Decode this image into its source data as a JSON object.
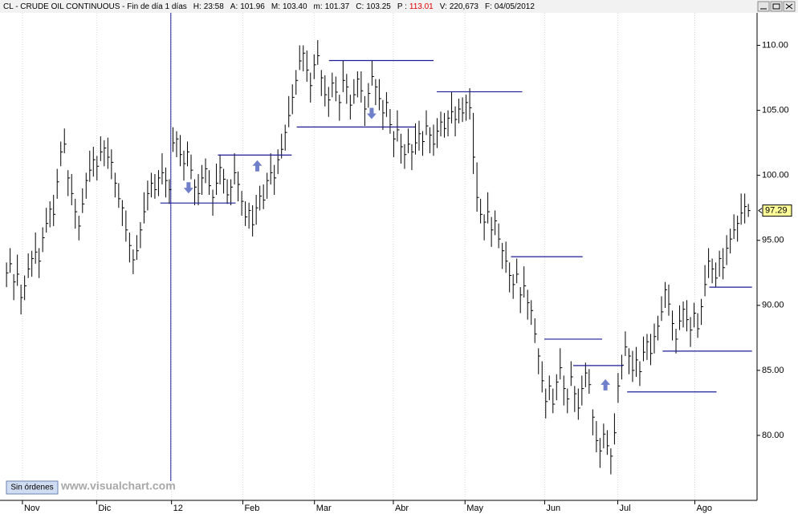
{
  "header": {
    "symbol": "CL - CRUDE OIL CONTINUOUS - Fin de día 1 días",
    "fields": [
      {
        "label": "H:",
        "value": "23:58"
      },
      {
        "label": "A:",
        "value": "101.96"
      },
      {
        "label": "M:",
        "value": "103.40"
      },
      {
        "label": "m:",
        "value": "101.37"
      },
      {
        "label": "C:",
        "value": "103.25"
      },
      {
        "label": "P :",
        "value": "113.01",
        "color": "#e00000"
      },
      {
        "label": "V:",
        "value": "220,673"
      },
      {
        "label": "F:",
        "value": "04/05/2012"
      }
    ]
  },
  "footer": {
    "button": "Sin órdenes",
    "watermark": "www.visualchart.com"
  },
  "chart_data": {
    "type": "ohlc",
    "color": "#000000",
    "xlim": [
      -1.8,
      207.4
    ],
    "ylim": [
      75,
      112.5
    ],
    "xticks": [
      {
        "value": 4.4,
        "label": "Nov"
      },
      {
        "value": 24.9,
        "label": "Dic"
      },
      {
        "value": 45.6,
        "label": "12"
      },
      {
        "value": 65.3,
        "label": "Feb"
      },
      {
        "value": 85.1,
        "label": "Mar"
      },
      {
        "value": 106.9,
        "label": "Abr"
      },
      {
        "value": 126.7,
        "label": "May"
      },
      {
        "value": 148.7,
        "label": "Jun"
      },
      {
        "value": 168.9,
        "label": "Jul"
      },
      {
        "value": 190.2,
        "label": "Ago"
      }
    ],
    "yticks": [
      {
        "value": 80,
        "label": "80.00"
      },
      {
        "value": 85,
        "label": "85.00"
      },
      {
        "value": 90,
        "label": "90.00"
      },
      {
        "value": 95,
        "label": "95.00"
      },
      {
        "value": 100,
        "label": "100.00"
      },
      {
        "value": 105,
        "label": "105.00"
      },
      {
        "value": 110,
        "label": "110.00"
      }
    ],
    "grid": true,
    "vline": 45.4,
    "last": 97.29,
    "high": [
      93.3,
      94.4,
      92.4,
      93.9,
      91.6,
      92.3,
      94.0,
      94.2,
      95.6,
      94.4,
      96.0,
      97.5,
      98.0,
      98.5,
      100.5,
      102.6,
      103.6,
      100.4,
      100.1,
      98.2,
      96.9,
      99.0,
      100.2,
      101.9,
      102.2,
      101.5,
      103.0,
      102.7,
      102.9,
      102.0,
      100.2,
      99.4,
      98.1,
      97.3,
      95.6,
      94.3,
      95.4,
      96.4,
      98.7,
      99.6,
      100.2,
      100.1,
      100.4,
      101.7,
      100.6,
      99.7,
      103.7,
      103.4,
      103.1,
      101.9,
      102.6,
      101.6,
      99.7,
      100.1,
      100.8,
      101.3,
      100.4,
      98.9,
      100.9,
      101.6,
      100.5,
      99.7,
      99.7,
      101.7,
      100.3,
      98.8,
      98.0,
      97.9,
      97.7,
      98.5,
      99.2,
      99.3,
      100.2,
      101.7,
      100.8,
      102.0,
      103.2,
      103.9,
      106.1,
      107.0,
      108.1,
      110.0,
      110.0,
      109.6,
      107.9,
      109.3,
      110.4,
      108.1,
      107.7,
      106.8,
      107.9,
      107.6,
      106.2,
      108.8,
      107.8,
      106.2,
      107.4,
      108.0,
      108.0,
      106.1,
      107.1,
      108.8,
      107.4,
      107.4,
      105.8,
      106.4,
      105.1,
      103.4,
      105.0,
      103.2,
      102.4,
      103.6,
      102.4,
      104.0,
      104.2,
      103.4,
      105.0,
      103.7,
      103.9,
      104.4,
      104.9,
      104.8,
      105.0,
      106.4,
      105.3,
      105.9,
      106.0,
      106.2,
      106.7,
      104.8,
      101.0,
      98.2,
      97.0,
      98.7,
      96.8,
      97.3,
      96.3,
      94.8,
      94.9,
      93.3,
      92.4,
      93.6,
      91.4,
      93.0,
      91.2,
      90.4,
      89.0,
      86.7,
      85.7,
      83.6,
      84.6,
      83.6,
      84.7,
      86.7,
      84.6,
      83.6,
      85.7,
      83.8,
      83.6,
      84.6,
      85.6,
      85.1,
      82.0,
      81.1,
      79.8,
      80.9,
      80.4,
      79.0,
      81.7,
      84.8,
      86.2,
      88.0,
      86.7,
      86.5,
      86.8,
      85.7,
      87.6,
      87.8,
      87.8,
      88.6,
      89.2,
      90.7,
      91.8,
      91.6,
      89.6,
      88.2,
      90.0,
      90.3,
      90.4,
      89.1,
      90.2,
      89.4,
      90.5,
      93.1,
      94.4,
      93.6,
      93.3,
      94.2,
      94.4,
      95.4,
      95.9,
      97.0,
      96.9,
      98.6,
      98.6,
      97.8
    ],
    "low": [
      91.4,
      92.5,
      90.4,
      91.5,
      89.3,
      90.4,
      92.1,
      92.2,
      93.2,
      92.1,
      94.1,
      95.6,
      96.0,
      96.1,
      98.2,
      100.7,
      101.7,
      98.4,
      97.7,
      95.9,
      95.0,
      97.1,
      98.2,
      99.5,
      99.9,
      99.6,
      101.1,
      100.7,
      100.5,
      99.7,
      98.3,
      97.5,
      96.1,
      94.9,
      93.3,
      92.4,
      93.5,
      94.4,
      96.3,
      97.3,
      98.3,
      98.2,
      98.4,
      99.3,
      98.3,
      97.8,
      101.8,
      101.4,
      100.7,
      99.6,
      100.7,
      99.7,
      97.7,
      97.7,
      98.5,
      99.4,
      98.5,
      96.9,
      98.5,
      99.3,
      98.6,
      97.8,
      97.7,
      99.3,
      98.0,
      96.9,
      96.1,
      95.9,
      95.3,
      96.2,
      97.3,
      97.4,
      98.2,
      99.3,
      98.5,
      100.1,
      101.3,
      101.9,
      103.7,
      104.7,
      106.2,
      108.1,
      108.0,
      107.2,
      105.6,
      107.4,
      108.5,
      106.1,
      105.3,
      104.5,
      106.0,
      105.7,
      104.2,
      106.4,
      105.5,
      104.3,
      105.5,
      106.0,
      105.6,
      103.8,
      105.2,
      106.9,
      105.4,
      105.0,
      103.5,
      104.5,
      103.2,
      101.4,
      102.6,
      100.9,
      100.5,
      101.7,
      100.4,
      101.6,
      101.9,
      101.5,
      103.1,
      101.7,
      101.5,
      102.1,
      103.0,
      102.9,
      103.0,
      104.0,
      103.0,
      104.0,
      104.1,
      104.2,
      104.3,
      100.1,
      97.2,
      96.3,
      95.0,
      96.3,
      94.5,
      95.4,
      94.4,
      92.8,
      92.5,
      91.0,
      90.5,
      91.7,
      89.4,
      90.6,
      88.9,
      88.5,
      87.1,
      84.7,
      83.3,
      81.3,
      82.7,
      81.7,
      82.7,
      84.3,
      82.3,
      81.7,
      83.8,
      81.8,
      81.2,
      82.3,
      83.7,
      83.2,
      80.0,
      78.7,
      77.5,
      79.0,
      78.5,
      77.0,
      79.3,
      82.5,
      84.3,
      86.1,
      84.7,
      84.1,
      84.5,
      83.8,
      85.7,
      85.8,
      85.4,
      86.3,
      87.3,
      88.8,
      89.8,
      89.2,
      87.3,
      86.3,
      88.1,
      88.3,
      88.0,
      86.8,
      88.3,
      87.5,
      88.5,
      90.7,
      92.1,
      91.7,
      91.4,
      92.2,
      92.0,
      93.1,
      94.0,
      95.1,
      94.9,
      96.2,
      96.3,
      96.8
    ],
    "close": [
      92.5,
      93.2,
      91.8,
      92.4,
      90.6,
      91.5,
      92.8,
      93.6,
      94.1,
      93.4,
      95.2,
      96.3,
      97.4,
      97.0,
      99.5,
      101.8,
      102.4,
      99.8,
      98.6,
      97.2,
      96.1,
      97.8,
      99.6,
      100.4,
      101.2,
      100.7,
      101.8,
      102.1,
      101.4,
      101.0,
      99.4,
      98.2,
      97.5,
      95.8,
      94.6,
      93.5,
      94.2,
      95.8,
      97.2,
      98.6,
      99.4,
      98.9,
      99.8,
      100.2,
      99.6,
      98.9,
      102.5,
      102.8,
      101.6,
      100.9,
      101.8,
      100.4,
      99.1,
      98.6,
      99.8,
      100.5,
      99.2,
      98.3,
      99.4,
      100.6,
      99.7,
      98.5,
      99.1,
      100.2,
      99.3,
      98.0,
      96.8,
      97.3,
      96.2,
      97.5,
      98.4,
      98.1,
      99.6,
      100.2,
      99.8,
      101.2,
      102.0,
      103.3,
      104.6,
      106.0,
      107.3,
      108.8,
      109.4,
      108.1,
      106.9,
      108.5,
      109.2,
      107.5,
      106.2,
      105.8,
      107.1,
      106.4,
      105.6,
      107.3,
      106.8,
      105.4,
      106.2,
      107.4,
      106.5,
      105.1,
      106.3,
      107.6,
      106.8,
      105.9,
      104.8,
      105.6,
      103.9,
      102.8,
      103.5,
      102.2,
      101.6,
      102.4,
      101.8,
      102.5,
      103.2,
      102.6,
      103.8,
      103.1,
      102.4,
      103.4,
      104.1,
      103.6,
      104.4,
      104.9,
      104.3,
      105.1,
      104.8,
      105.6,
      105.2,
      101.4,
      98.3,
      97.0,
      96.4,
      97.2,
      95.8,
      96.5,
      95.1,
      94.2,
      93.4,
      92.3,
      91.6,
      92.4,
      90.8,
      91.5,
      90.2,
      89.6,
      87.8,
      86.1,
      84.2,
      82.6,
      83.8,
      82.4,
      84.1,
      85.2,
      83.6,
      82.8,
      84.5,
      83.2,
      82.1,
      83.6,
      84.8,
      83.9,
      81.4,
      79.6,
      78.8,
      80.1,
      79.2,
      78.4,
      80.2,
      83.8,
      85.4,
      86.8,
      86.1,
      85.0,
      85.8,
      84.9,
      86.4,
      87.2,
      86.3,
      87.6,
      88.4,
      89.5,
      91.2,
      90.1,
      88.6,
      87.4,
      88.8,
      89.7,
      88.9,
      88.1,
      89.4,
      88.2,
      89.9,
      91.6,
      93.4,
      92.8,
      92.1,
      93.6,
      92.9,
      94.4,
      95.1,
      95.8,
      96.3,
      97.1,
      97.6,
      97.29
    ],
    "level_color": "#1c1c96",
    "levels": [
      {
        "value": 97.87,
        "x": [
          42.5,
          63.3
        ]
      },
      {
        "value": 101.56,
        "x": [
          58.4,
          78.8
        ]
      },
      {
        "value": 103.72,
        "x": [
          80.2,
          112.9
        ]
      },
      {
        "value": 108.83,
        "x": [
          89.1,
          118.0
        ]
      },
      {
        "value": 106.43,
        "x": [
          118.9,
          142.5
        ]
      },
      {
        "value": 93.74,
        "x": [
          139.4,
          159.2
        ]
      },
      {
        "value": 87.4,
        "x": [
          148.6,
          164.6
        ]
      },
      {
        "value": 85.37,
        "x": [
          156.6,
          170.4
        ]
      },
      {
        "value": 83.34,
        "x": [
          171.5,
          196.2
        ]
      },
      {
        "value": 86.48,
        "x": [
          181.3,
          206.0
        ]
      },
      {
        "value": 91.4,
        "x": [
          194.2,
          206.0
        ]
      }
    ],
    "arrow_color": "#6f7fc9",
    "arrows": [
      {
        "x": 50.3,
        "y": 98.98,
        "direction": "down"
      },
      {
        "x": 69.3,
        "y": 100.8,
        "direction": "up"
      },
      {
        "x": 100.9,
        "y": 104.7,
        "direction": "down"
      },
      {
        "x": 165.5,
        "y": 83.95,
        "direction": "up"
      }
    ]
  }
}
